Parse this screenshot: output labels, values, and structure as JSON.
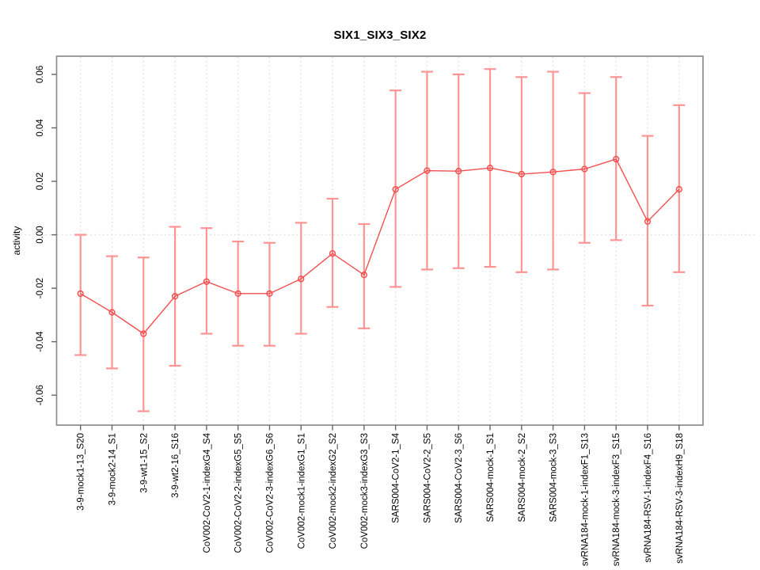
{
  "figure": {
    "background": "#ffffff"
  },
  "chart_data": {
    "type": "line",
    "title": "SIX1_SIX3_SIX2",
    "ylabel": "activity",
    "xlabel": "",
    "legend": "none",
    "grid": "vertical dotted gridline at every category; dotted horizontal line at y=0",
    "marker": "open-circle with vertical error bars and caps",
    "categories": [
      "3-9-mock1-13_S20",
      "3-9-mock2-14_S1",
      "3-9-wt1-15_S2",
      "3-9-wt2-16_S16",
      "CoV002-CoV2-1-indexG4_S4",
      "CoV002-CoV2-2-indexG5_S5",
      "CoV002-CoV2-3-indexG6_S6",
      "CoV002-mock1-indexG1_S1",
      "CoV002-mock2-indexG2_S2",
      "CoV002-mock3-indexG3_S3",
      "SARS004-CoV2-1_S4",
      "SARS004-CoV2-2_S5",
      "SARS004-CoV2-3_S6",
      "SARS004-mock-1_S1",
      "SARS004-mock-2_S2",
      "SARS004-mock-3_S3",
      "svRNA184-mock-1-indexF1_S13",
      "svRNA184-mock-3-indexF3_S15",
      "svRNA184-RSV-1-indexF4_S16",
      "svRNA184-RSV-3-indexH9_S18"
    ],
    "series": [
      {
        "name": "activity",
        "values": [
          -0.022,
          -0.029,
          -0.037,
          -0.023,
          -0.0175,
          -0.022,
          -0.022,
          -0.0165,
          -0.007,
          -0.015,
          0.017,
          0.024,
          0.0238,
          0.025,
          0.0227,
          0.0235,
          0.0246,
          0.0283,
          0.005,
          0.017
        ],
        "error_low": [
          -0.045,
          -0.05,
          -0.066,
          -0.049,
          -0.037,
          -0.0415,
          -0.0415,
          -0.037,
          -0.027,
          -0.035,
          -0.0195,
          -0.013,
          -0.0125,
          -0.012,
          -0.014,
          -0.013,
          -0.003,
          -0.002,
          -0.0265,
          -0.014
        ],
        "error_high": [
          0.0,
          -0.008,
          -0.0085,
          0.003,
          0.0025,
          -0.0025,
          -0.003,
          0.0045,
          0.0135,
          0.004,
          0.054,
          0.061,
          0.06,
          0.062,
          0.059,
          0.061,
          0.053,
          0.059,
          0.037,
          0.0485
        ]
      }
    ],
    "yticks": [
      -0.06,
      -0.04,
      -0.02,
      0.0,
      0.02,
      0.04,
      0.06
    ],
    "ytick_labels": [
      "-0.06",
      "-0.04",
      "-0.02",
      "0.00",
      "0.02",
      "0.04",
      "0.06"
    ],
    "ylim": [
      -0.0712,
      0.0668
    ],
    "colors": {
      "series": "#f25050",
      "error_bar": "#ff9494",
      "grid": "#dddddd",
      "zero_line": "#dddddd",
      "axis_box": "#8c8c8c",
      "tick": "#666666",
      "text": "#000000"
    }
  }
}
